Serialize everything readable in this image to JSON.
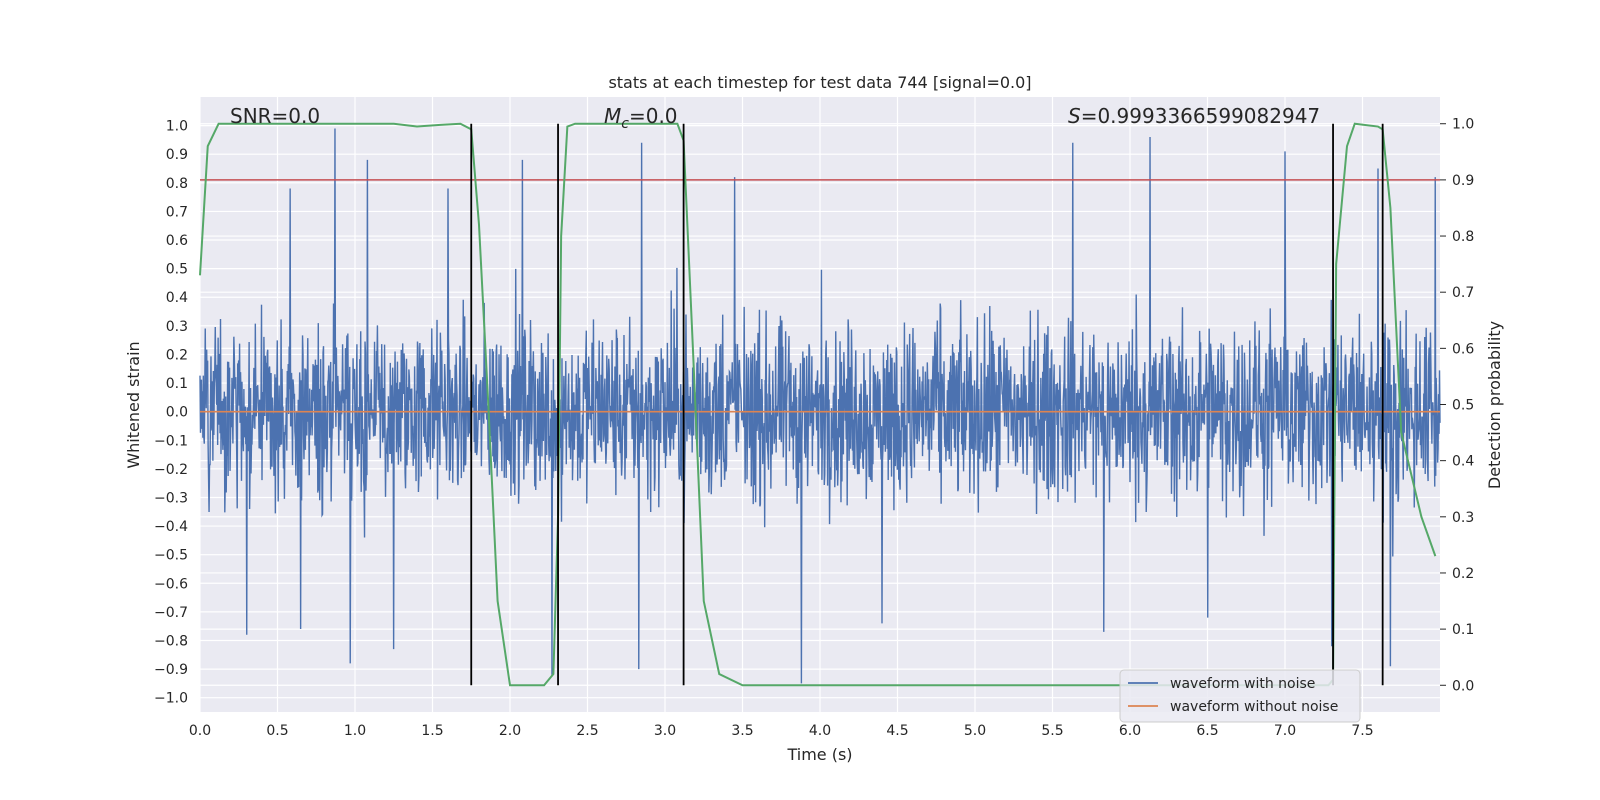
{
  "chart_data": {
    "type": "line",
    "title": "stats at each timestep for test data 744 [signal=0.0]",
    "xlabel": "Time (s)",
    "ylabel": "Whitened strain",
    "y2label": "Detection probability",
    "xlim": [
      0.0,
      8.0
    ],
    "ylim": [
      -1.05,
      1.1
    ],
    "y2lim": [
      -0.0476,
      1.0476
    ],
    "xticks": [
      "0.0",
      "0.5",
      "1.0",
      "1.5",
      "2.0",
      "2.5",
      "3.0",
      "3.5",
      "4.0",
      "4.5",
      "5.0",
      "5.5",
      "6.0",
      "6.5",
      "7.0",
      "7.5"
    ],
    "yticks": [
      "-1.0",
      "-0.9",
      "-0.8",
      "-0.7",
      "-0.6",
      "-0.5",
      "-0.4",
      "-0.3",
      "-0.2",
      "-0.1",
      "0.0",
      "0.1",
      "0.2",
      "0.3",
      "0.4",
      "0.5",
      "0.6",
      "0.7",
      "0.8",
      "0.9",
      "1.0"
    ],
    "y2ticks": [
      "0.0",
      "0.1",
      "0.2",
      "0.3",
      "0.4",
      "0.5",
      "0.6",
      "0.7",
      "0.8",
      "0.9",
      "1.0"
    ],
    "grid": true,
    "annotations": {
      "snr": "SNR=0.0",
      "mc_symbol": "M",
      "mc_sub": "c",
      "mc_value": "=0.0",
      "s_symbol": "S",
      "s_value": "=0.9993366599082947"
    },
    "legend": {
      "position": "lower-right",
      "entries": [
        {
          "label": "waveform with noise",
          "color": "#4c72b0"
        },
        {
          "label": "waveform without noise",
          "color": "#dd8452"
        }
      ]
    },
    "threshold": {
      "axis": "y2",
      "value": 0.9,
      "color": "#c44e52"
    },
    "vlines": [
      1.75,
      2.31,
      3.12,
      7.31,
      7.63
    ],
    "noise": {
      "name": "waveform with noise",
      "color": "#4c72b0",
      "t_start": 0.0,
      "t_end": 8.0,
      "typical_range": [
        -0.45,
        0.45
      ],
      "spikes": [
        {
          "t": 0.87,
          "v": 0.99
        },
        {
          "t": 1.08,
          "v": 0.88
        },
        {
          "t": 2.08,
          "v": 0.88
        },
        {
          "t": 2.85,
          "v": 0.94
        },
        {
          "t": 3.45,
          "v": 0.82
        },
        {
          "t": 5.63,
          "v": 0.94
        },
        {
          "t": 6.13,
          "v": 0.96
        },
        {
          "t": 7.0,
          "v": 0.91
        },
        {
          "t": 7.97,
          "v": 0.82
        },
        {
          "t": 7.6,
          "v": 0.85
        },
        {
          "t": 0.58,
          "v": 0.78
        },
        {
          "t": 1.6,
          "v": 0.78
        },
        {
          "t": 0.97,
          "v": -0.88
        },
        {
          "t": 0.3,
          "v": -0.78
        },
        {
          "t": 1.25,
          "v": -0.83
        },
        {
          "t": 2.83,
          "v": -0.9
        },
        {
          "t": 2.27,
          "v": -0.92
        },
        {
          "t": 3.88,
          "v": -0.95
        },
        {
          "t": 6.5,
          "v": -0.72
        },
        {
          "t": 7.68,
          "v": -0.89
        },
        {
          "t": 7.3,
          "v": -0.82
        },
        {
          "t": 0.65,
          "v": -0.76
        },
        {
          "t": 4.4,
          "v": -0.74
        },
        {
          "t": 5.83,
          "v": -0.77
        }
      ]
    },
    "clean": {
      "name": "waveform without noise",
      "color": "#dd8452",
      "value": 0.0
    },
    "probability": {
      "name": "detection probability",
      "color": "#55a868",
      "t": [
        0.0,
        0.05,
        0.12,
        0.2,
        0.5,
        1.0,
        1.25,
        1.4,
        1.55,
        1.68,
        1.75,
        1.8,
        1.86,
        1.92,
        2.0,
        2.1,
        2.22,
        2.28,
        2.31,
        2.33,
        2.37,
        2.42,
        2.5,
        2.8,
        3.0,
        3.08,
        3.12,
        3.18,
        3.25,
        3.35,
        3.5,
        4.5,
        5.5,
        6.0,
        7.0,
        7.28,
        7.31,
        7.33,
        7.4,
        7.45,
        7.6,
        7.63,
        7.68,
        7.75,
        7.88,
        7.97
      ],
      "p": [
        0.73,
        0.96,
        1.0,
        1.0,
        1.0,
        1.0,
        1.0,
        0.995,
        0.998,
        1.0,
        0.99,
        0.82,
        0.5,
        0.15,
        0.0,
        0.0,
        0.0,
        0.02,
        0.3,
        0.8,
        0.995,
        1.0,
        1.0,
        1.0,
        1.0,
        1.0,
        0.97,
        0.6,
        0.15,
        0.02,
        0.0,
        0.0,
        0.0,
        0.0,
        0.0,
        0.0,
        0.01,
        0.75,
        0.96,
        1.0,
        0.995,
        0.99,
        0.85,
        0.45,
        0.3,
        0.23
      ]
    }
  }
}
